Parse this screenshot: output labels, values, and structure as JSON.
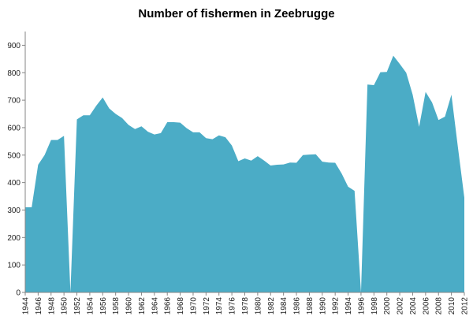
{
  "chart_data": {
    "type": "area",
    "title": "Number of fishermen in Zeebrugge",
    "xlabel": "",
    "ylabel": "",
    "x": [
      1944,
      1945,
      1946,
      1947,
      1948,
      1949,
      1950,
      1951,
      1952,
      1953,
      1954,
      1955,
      1956,
      1957,
      1958,
      1959,
      1960,
      1961,
      1962,
      1963,
      1964,
      1965,
      1966,
      1967,
      1968,
      1969,
      1970,
      1971,
      1972,
      1973,
      1974,
      1975,
      1976,
      1977,
      1978,
      1979,
      1980,
      1981,
      1982,
      1983,
      1984,
      1985,
      1986,
      1987,
      1988,
      1989,
      1990,
      1991,
      1992,
      1993,
      1994,
      1995,
      1996,
      1997,
      1998,
      1999,
      2000,
      2001,
      2002,
      2003,
      2004,
      2005,
      2006,
      2007,
      2008,
      2009,
      2010,
      2011,
      2012
    ],
    "series": [
      {
        "values": [
          310,
          310,
          465,
          500,
          555,
          555,
          570,
          0,
          630,
          645,
          645,
          680,
          710,
          670,
          650,
          635,
          610,
          595,
          605,
          585,
          575,
          580,
          620,
          620,
          618,
          598,
          583,
          583,
          562,
          558,
          572,
          565,
          535,
          478,
          488,
          480,
          496,
          480,
          462,
          465,
          466,
          473,
          472,
          500,
          502,
          503,
          476,
          473,
          472,
          433,
          385,
          370,
          0,
          757,
          755,
          802,
          803,
          862,
          832,
          800,
          720,
          603,
          730,
          692,
          628,
          640,
          720,
          530,
          345
        ],
        "color": "#4BACC6"
      }
    ],
    "xticks": [
      "1944",
      "1946",
      "1948",
      "1950",
      "1952",
      "1954",
      "1956",
      "1958",
      "1960",
      "1962",
      "1964",
      "1966",
      "1968",
      "1970",
      "1972",
      "1974",
      "1976",
      "1978",
      "1980",
      "1982",
      "1984",
      "1986",
      "1988",
      "1990",
      "1992",
      "1994",
      "1996",
      "1998",
      "2000",
      "2002",
      "2004",
      "2006",
      "2008",
      "2010",
      "2012"
    ],
    "yticks": [
      "0",
      "100",
      "200",
      "300",
      "400",
      "500",
      "600",
      "700",
      "800",
      "900"
    ],
    "ylim": [
      0,
      950
    ],
    "grid": false,
    "legend": "none"
  }
}
